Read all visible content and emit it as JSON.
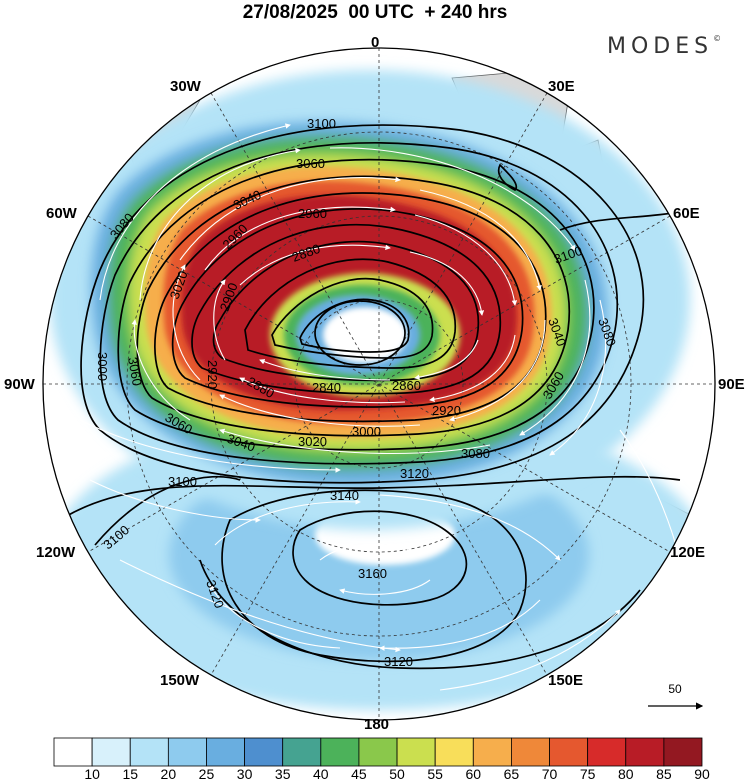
{
  "title": "27/08/2025  00 UTC  + 240 hrs",
  "brand": "MODES",
  "brand_mark": "©",
  "longitude_labels": {
    "lon_0": "0",
    "lon_30e": "30E",
    "lon_60e": "60E",
    "lon_90e": "90E",
    "lon_120e": "120E",
    "lon_150e": "150E",
    "lon_180": "180",
    "lon_150w": "150W",
    "lon_120w": "120W",
    "lon_90w": "90W",
    "lon_60w": "60W",
    "lon_30w": "30W"
  },
  "contour_labels": {
    "c1": "3100",
    "c2": "3060",
    "c3": "3040",
    "c4": "2960",
    "c5": "2960",
    "c6": "2880",
    "c7": "3080",
    "c8": "3020",
    "c9": "2900",
    "c10": "2920",
    "c11": "3000",
    "c12": "3060",
    "c13": "2880",
    "c14": "2840",
    "c15": "2860",
    "c16": "2920",
    "c17": "3060",
    "c18": "3040",
    "c19": "3000",
    "c20": "3020",
    "c21": "3080",
    "c22": "3060",
    "c23": "3040",
    "c24": "3080",
    "c25": "3100",
    "c26": "3120",
    "c27": "3140",
    "c28": "3100",
    "c29": "3100",
    "c30": "3160",
    "c31": "3120",
    "c32": "3120"
  },
  "vector_scale_label": "50",
  "colorbar": {
    "ticks": [
      "10",
      "15",
      "20",
      "25",
      "30",
      "35",
      "40",
      "45",
      "50",
      "55",
      "60",
      "65",
      "70",
      "75",
      "80",
      "85",
      "90"
    ],
    "colors": [
      "#ffffff",
      "#d8f1fb",
      "#b4e3f7",
      "#8ecbee",
      "#69aee0",
      "#4e8fcf",
      "#45a391",
      "#4cb25a",
      "#8ac84b",
      "#cbdf4f",
      "#f8de5a",
      "#f6ae4c",
      "#ef8839",
      "#e5582f",
      "#d72b2a",
      "#b81c26",
      "#931821"
    ]
  },
  "colors": {
    "land": "#d9d9d9",
    "contour": "#000000",
    "streamline": "#ffffff"
  }
}
